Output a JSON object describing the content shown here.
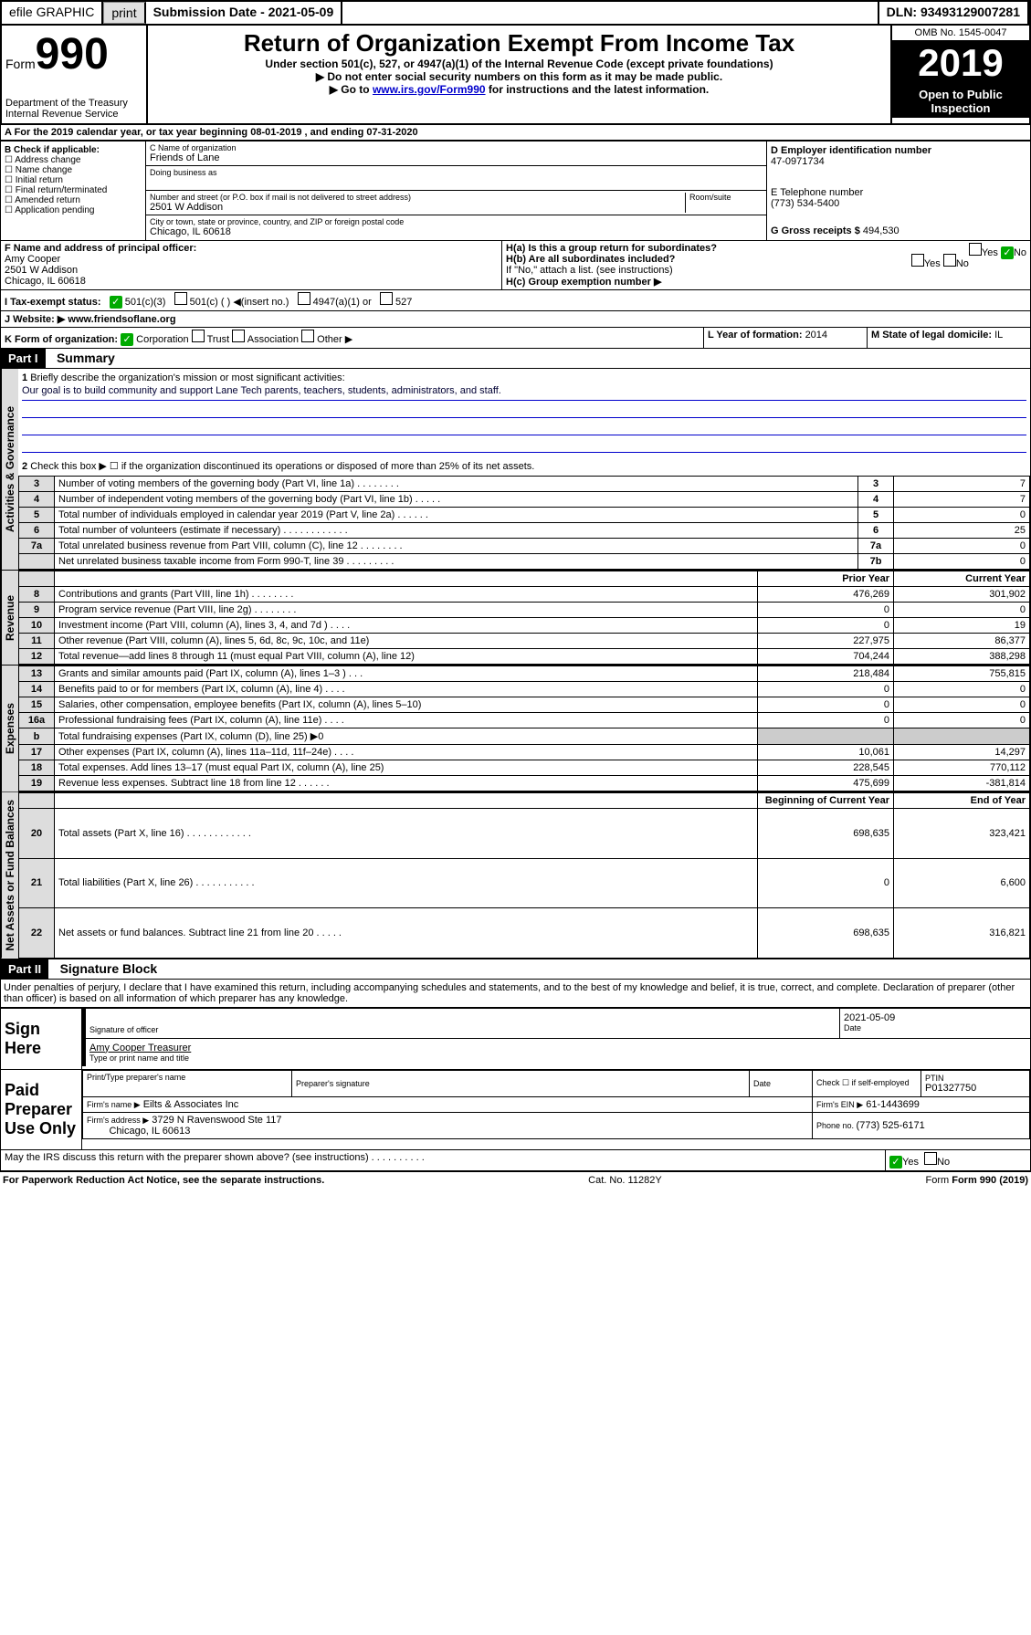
{
  "topbar": {
    "efile": "efile GRAPHIC",
    "print": "print",
    "sub_date_label": "Submission Date - 2021-05-09",
    "dln": "DLN: 93493129007281"
  },
  "header": {
    "form_label": "Form",
    "form_number": "990",
    "dept": "Department of the Treasury\nInternal Revenue Service",
    "title": "Return of Organization Exempt From Income Tax",
    "subtitle1": "Under section 501(c), 527, or 4947(a)(1) of the Internal Revenue Code (except private foundations)",
    "subtitle2": "▶ Do not enter social security numbers on this form as it may be made public.",
    "subtitle3_pre": "▶ Go to ",
    "subtitle3_link": "www.irs.gov/Form990",
    "subtitle3_post": " for instructions and the latest information.",
    "omb": "OMB No. 1545-0047",
    "year": "2019",
    "open_public": "Open to Public Inspection"
  },
  "line_a": {
    "text_pre": "A For the 2019 calendar year, or tax year beginning ",
    "begin": "08-01-2019",
    "mid": " , and ending ",
    "end": "07-31-2020"
  },
  "box_b": {
    "label": "B Check if applicable:",
    "items": [
      "Address change",
      "Name change",
      "Initial return",
      "Final return/terminated",
      "Amended return",
      "Application pending"
    ]
  },
  "box_c": {
    "name_label": "C Name of organization",
    "name": "Friends of Lane",
    "dba_label": "Doing business as",
    "addr_label": "Number and street (or P.O. box if mail is not delivered to street address)",
    "room_label": "Room/suite",
    "addr": "2501 W Addison",
    "city_label": "City or town, state or province, country, and ZIP or foreign postal code",
    "city": "Chicago, IL  60618"
  },
  "box_d": {
    "label": "D Employer identification number",
    "value": "47-0971734"
  },
  "box_e": {
    "label": "E Telephone number",
    "value": "(773) 534-5400"
  },
  "box_g": {
    "label": "G Gross receipts $ ",
    "value": "494,530"
  },
  "box_f": {
    "label": "F  Name and address of principal officer:",
    "name": "Amy Cooper",
    "addr1": "2501 W Addison",
    "addr2": "Chicago, IL  60618"
  },
  "box_h": {
    "a_label": "H(a)  Is this a group return for subordinates?",
    "b_label": "H(b)  Are all subordinates included?",
    "b_note": "If \"No,\" attach a list. (see instructions)",
    "c_label": "H(c)  Group exemption number ▶",
    "yes": "Yes",
    "no": "No"
  },
  "box_i": {
    "label": "I  Tax-exempt status:",
    "opt1": "501(c)(3)",
    "opt2": "501(c) (   ) ◀(insert no.)",
    "opt3": "4947(a)(1) or",
    "opt4": "527"
  },
  "box_j": {
    "label": "J  Website: ▶ ",
    "value": "www.friendsoflane.org"
  },
  "box_k": {
    "label": "K Form of organization:",
    "corp": "Corporation",
    "trust": "Trust",
    "assoc": "Association",
    "other": "Other ▶"
  },
  "box_l": {
    "label": "L Year of formation: ",
    "value": "2014"
  },
  "box_m": {
    "label": "M State of legal domicile: ",
    "value": "IL"
  },
  "part1": {
    "label": "Part I",
    "title": "Summary",
    "q1": "Briefly describe the organization's mission or most significant activities:",
    "mission": "Our goal is to build community and support Lane Tech parents, teachers, students, administrators, and staff.",
    "q2": "Check this box ▶ ☐  if the organization discontinued its operations or disposed of more than 25% of its net assets.",
    "sections": {
      "gov": "Activities & Governance",
      "rev": "Revenue",
      "exp": "Expenses",
      "net": "Net Assets or Fund Balances"
    },
    "rows_gov": [
      {
        "n": "3",
        "label": "Number of voting members of the governing body (Part VI, line 1a)  .    .    .    .    .    .    .    .",
        "box": "3",
        "val": "7"
      },
      {
        "n": "4",
        "label": "Number of independent voting members of the governing body (Part VI, line 1b)  .    .    .    .    .",
        "box": "4",
        "val": "7"
      },
      {
        "n": "5",
        "label": "Total number of individuals employed in calendar year 2019 (Part V, line 2a)  .    .    .    .    .    .",
        "box": "5",
        "val": "0"
      },
      {
        "n": "6",
        "label": "Total number of volunteers (estimate if necessary)  .    .    .    .    .    .    .    .    .    .    .    .",
        "box": "6",
        "val": "25"
      },
      {
        "n": "7a",
        "label": "Total unrelated business revenue from Part VIII, column (C), line 12  .    .    .    .    .    .    .    .",
        "box": "7a",
        "val": "0"
      },
      {
        "n": "",
        "label": "Net unrelated business taxable income from Form 990-T, line 39  .    .    .    .    .    .    .    .    .",
        "box": "7b",
        "val": "0"
      }
    ],
    "col_prior": "Prior Year",
    "col_current": "Current Year",
    "rows_rev": [
      {
        "n": "8",
        "label": "Contributions and grants (Part VIII, line 1h)  .    .    .    .    .    .    .    .",
        "prior": "476,269",
        "cur": "301,902"
      },
      {
        "n": "9",
        "label": "Program service revenue (Part VIII, line 2g)  .    .    .    .    .    .    .    .",
        "prior": "0",
        "cur": "0"
      },
      {
        "n": "10",
        "label": "Investment income (Part VIII, column (A), lines 3, 4, and 7d )  .    .    .    .",
        "prior": "0",
        "cur": "19"
      },
      {
        "n": "11",
        "label": "Other revenue (Part VIII, column (A), lines 5, 6d, 8c, 9c, 10c, and 11e)",
        "prior": "227,975",
        "cur": "86,377"
      },
      {
        "n": "12",
        "label": "Total revenue—add lines 8 through 11 (must equal Part VIII, column (A), line 12)",
        "prior": "704,244",
        "cur": "388,298"
      }
    ],
    "rows_exp": [
      {
        "n": "13",
        "label": "Grants and similar amounts paid (Part IX, column (A), lines 1–3 )  .    .    .",
        "prior": "218,484",
        "cur": "755,815"
      },
      {
        "n": "14",
        "label": "Benefits paid to or for members (Part IX, column (A), line 4)  .    .    .    .",
        "prior": "0",
        "cur": "0"
      },
      {
        "n": "15",
        "label": "Salaries, other compensation, employee benefits (Part IX, column (A), lines 5–10)",
        "prior": "0",
        "cur": "0"
      },
      {
        "n": "16a",
        "label": "Professional fundraising fees (Part IX, column (A), line 11e)  .    .    .    .",
        "prior": "0",
        "cur": "0"
      },
      {
        "n": "b",
        "label": "Total fundraising expenses (Part IX, column (D), line 25) ▶0",
        "prior": "",
        "cur": ""
      },
      {
        "n": "17",
        "label": "Other expenses (Part IX, column (A), lines 11a–11d, 11f–24e)  .    .    .    .",
        "prior": "10,061",
        "cur": "14,297"
      },
      {
        "n": "18",
        "label": "Total expenses. Add lines 13–17 (must equal Part IX, column (A), line 25)",
        "prior": "228,545",
        "cur": "770,112"
      },
      {
        "n": "19",
        "label": "Revenue less expenses. Subtract line 18 from line 12  .    .    .    .    .    .",
        "prior": "475,699",
        "cur": "-381,814"
      }
    ],
    "col_begin": "Beginning of Current Year",
    "col_end": "End of Year",
    "rows_net": [
      {
        "n": "20",
        "label": "Total assets (Part X, line 16)  .    .    .    .    .    .    .    .    .    .    .    .",
        "prior": "698,635",
        "cur": "323,421"
      },
      {
        "n": "21",
        "label": "Total liabilities (Part X, line 26)  .    .    .    .    .    .    .    .    .    .    .",
        "prior": "0",
        "cur": "6,600"
      },
      {
        "n": "22",
        "label": "Net assets or fund balances. Subtract line 21 from line 20  .    .    .    .    .",
        "prior": "698,635",
        "cur": "316,821"
      }
    ]
  },
  "part2": {
    "label": "Part II",
    "title": "Signature Block",
    "perjury": "Under penalties of perjury, I declare that I have examined this return, including accompanying schedules and statements, and to the best of my knowledge and belief, it is true, correct, and complete. Declaration of preparer (other than officer) is based on all information of which preparer has any knowledge.",
    "sign_here": "Sign Here",
    "sig_officer": "Signature of officer",
    "date_label": "Date",
    "date": "2021-05-09",
    "officer_name": "Amy Cooper  Treasurer",
    "type_name": "Type or print name and title",
    "paid": "Paid Preparer Use Only",
    "prep_name_label": "Print/Type preparer's name",
    "prep_sig_label": "Preparer's signature",
    "prep_date_label": "Date",
    "check_self": "Check ☐ if self-employed",
    "ptin_label": "PTIN",
    "ptin": "P01327750",
    "firm_name_label": "Firm's name    ▶",
    "firm_name": "Eilts & Associates Inc",
    "firm_ein_label": "Firm's EIN ▶",
    "firm_ein": "61-1443699",
    "firm_addr_label": "Firm's address ▶",
    "firm_addr1": "3729 N Ravenswood Ste 117",
    "firm_addr2": "Chicago, IL  60613",
    "phone_label": "Phone no. ",
    "phone": "(773) 525-6171",
    "discuss": "May the IRS discuss this return with the preparer shown above? (see instructions)   .     .     .     .     .     .     .     .     .     .",
    "yes": "Yes",
    "no": "No"
  },
  "footer": {
    "paperwork": "For Paperwork Reduction Act Notice, see the separate instructions.",
    "cat": "Cat. No. 11282Y",
    "form": "Form 990 (2019)"
  }
}
